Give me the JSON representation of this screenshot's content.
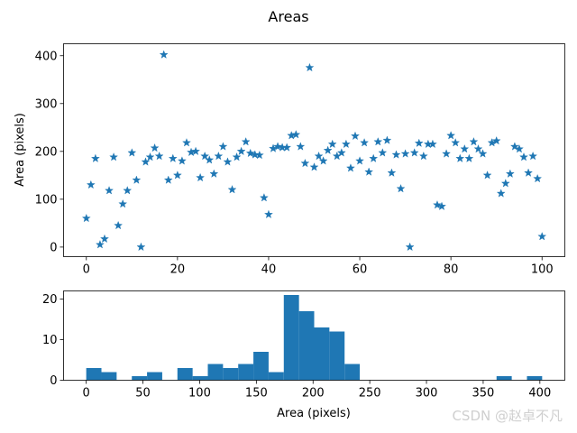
{
  "figure": {
    "title": "Areas",
    "watermark": "CSDN @赵卓不凡"
  },
  "colors": {
    "series": "#1f77b4",
    "axis": "#000000",
    "background": "#ffffff"
  },
  "chart_data": [
    {
      "type": "scatter",
      "marker": "star",
      "xlabel": "",
      "ylabel": "Area (pixels)",
      "xlim": [
        -5,
        105
      ],
      "ylim": [
        -20,
        425
      ],
      "xticks": [
        0,
        20,
        40,
        60,
        80,
        100
      ],
      "yticks": [
        0,
        100,
        200,
        300,
        400
      ],
      "grid": false,
      "series": [
        {
          "x": [
            0,
            1,
            2,
            3,
            4,
            5,
            6,
            7,
            8,
            9,
            10,
            11,
            12,
            13,
            14,
            15,
            16,
            17,
            18,
            19,
            20,
            21,
            22,
            23,
            24,
            25,
            26,
            27,
            28,
            29,
            30,
            31,
            32,
            33,
            34,
            35,
            36,
            37,
            38,
            39,
            40,
            41,
            42,
            43,
            44,
            45,
            46,
            47,
            48,
            49,
            50,
            51,
            52,
            53,
            54,
            55,
            56,
            57,
            58,
            59,
            60,
            61,
            62,
            63,
            64,
            65,
            66,
            67,
            68,
            69,
            70,
            71,
            72,
            73,
            74,
            75,
            76,
            77,
            78,
            79,
            80,
            81,
            82,
            83,
            84,
            85,
            86,
            87,
            88,
            89,
            90,
            91,
            92,
            93,
            94,
            95,
            96,
            97,
            98,
            99,
            100
          ],
          "y": [
            60,
            130,
            185,
            5,
            17,
            118,
            188,
            45,
            90,
            118,
            197,
            140,
            0,
            178,
            188,
            207,
            190,
            402,
            140,
            185,
            150,
            180,
            218,
            198,
            200,
            145,
            190,
            182,
            153,
            190,
            210,
            178,
            120,
            188,
            200,
            220,
            196,
            193,
            192,
            103,
            68,
            206,
            210,
            208,
            208,
            233,
            235,
            210,
            175,
            375,
            167,
            190,
            180,
            202,
            215,
            190,
            197,
            215,
            165,
            232,
            180,
            218,
            157,
            185,
            220,
            197,
            223,
            155,
            193,
            122,
            195,
            0,
            197,
            217,
            190,
            215,
            215,
            88,
            85,
            195,
            233,
            218,
            185,
            205,
            185,
            220,
            205,
            195,
            150,
            218,
            222,
            112,
            133,
            153,
            210,
            205,
            188,
            155,
            190,
            143,
            22
          ]
        }
      ]
    },
    {
      "type": "bar",
      "kind": "histogram",
      "xlabel": "Area (pixels)",
      "ylabel": "",
      "xlim": [
        -20,
        422
      ],
      "ylim": [
        0,
        22
      ],
      "xticks": [
        0,
        50,
        100,
        150,
        200,
        250,
        300,
        350,
        400
      ],
      "yticks": [
        0,
        10,
        20
      ],
      "grid": false,
      "bin_edges": [
        0,
        13.4,
        26.8,
        40.2,
        53.6,
        67,
        80.4,
        93.8,
        107.2,
        120.6,
        134,
        147.4,
        160.8,
        174.2,
        187.6,
        201,
        214.4,
        227.8,
        241.2,
        254.6,
        268,
        281.4,
        294.8,
        308.2,
        321.6,
        335,
        348.4,
        361.8,
        375.2,
        388.6,
        402
      ],
      "values": [
        3,
        2,
        0,
        1,
        2,
        0,
        3,
        1,
        4,
        3,
        4,
        7,
        2,
        21,
        17,
        13,
        12,
        4,
        0,
        0,
        0,
        0,
        0,
        0,
        0,
        0,
        0,
        1,
        0,
        1
      ]
    }
  ]
}
